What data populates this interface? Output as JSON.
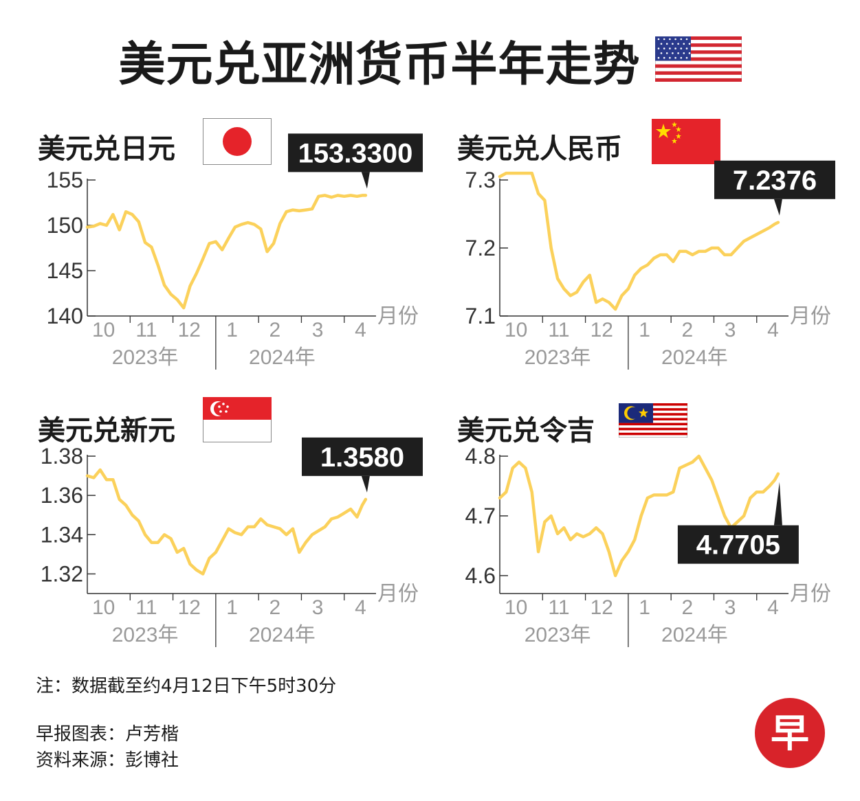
{
  "title": "美元兑亚洲货币半年走势",
  "note": "注：数据截至约4月12日下午5时30分",
  "credits": {
    "chart_by": "早报图表：卢芳楷",
    "source": "资料来源：彭博社"
  },
  "logo_char": "早",
  "month_unit": "月份",
  "year_labels": [
    "2023年",
    "2024年"
  ],
  "colors": {
    "line": "#fbd15b",
    "callout_bg": "#1e1e1e",
    "callout_text": "#ffffff",
    "logo_red": "#d8232a"
  },
  "chart_data": [
    {
      "type": "line",
      "title": "美元兑日元",
      "flag": "japan-flag",
      "latest_label": "153.3300",
      "x_ticks": [
        "10",
        "11",
        "12",
        "1",
        "2",
        "3",
        "4"
      ],
      "ylim": [
        140,
        155
      ],
      "yticks": [
        140,
        145,
        150,
        155
      ],
      "y_tick_labels": [
        "140",
        "145",
        "150",
        "155"
      ],
      "x_range": [
        0,
        6.55
      ],
      "x": [
        0,
        0.15,
        0.3,
        0.45,
        0.6,
        0.75,
        0.9,
        1.05,
        1.2,
        1.35,
        1.5,
        1.65,
        1.8,
        1.95,
        2.1,
        2.25,
        2.4,
        2.55,
        2.7,
        2.85,
        3.0,
        3.15,
        3.3,
        3.45,
        3.6,
        3.75,
        3.9,
        4.05,
        4.2,
        4.35,
        4.5,
        4.65,
        4.8,
        4.95,
        5.1,
        5.25,
        5.4,
        5.55,
        5.7,
        5.85,
        6.0,
        6.15,
        6.3,
        6.42,
        6.5
      ],
      "y": [
        149.8,
        149.9,
        150.2,
        150.0,
        151.2,
        149.5,
        151.5,
        151.2,
        150.4,
        148.1,
        147.6,
        145.6,
        143.4,
        142.4,
        141.8,
        140.9,
        143.3,
        144.7,
        146.3,
        148.0,
        148.2,
        147.3,
        148.6,
        149.8,
        150.1,
        150.3,
        150.1,
        149.6,
        147.1,
        148.0,
        150.2,
        151.5,
        151.7,
        151.6,
        151.7,
        151.8,
        153.2,
        153.3,
        153.1,
        153.3,
        153.2,
        153.3,
        153.2,
        153.3,
        153.3
      ]
    },
    {
      "type": "line",
      "title": "美元兑人民币",
      "flag": "china-flag",
      "latest_label": "7.2376",
      "x_ticks": [
        "10",
        "11",
        "12",
        "1",
        "2",
        "3",
        "4"
      ],
      "ylim": [
        7.1,
        7.3
      ],
      "yticks": [
        7.1,
        7.2,
        7.3
      ],
      "y_tick_labels": [
        "7.1",
        "7.2",
        "7.3"
      ],
      "x_range": [
        0,
        6.55
      ],
      "x": [
        0,
        0.15,
        0.3,
        0.45,
        0.6,
        0.75,
        0.9,
        1.05,
        1.2,
        1.35,
        1.5,
        1.65,
        1.8,
        1.95,
        2.1,
        2.25,
        2.4,
        2.55,
        2.7,
        2.85,
        3.0,
        3.15,
        3.3,
        3.45,
        3.6,
        3.75,
        3.9,
        4.05,
        4.2,
        4.35,
        4.5,
        4.65,
        4.8,
        4.95,
        5.1,
        5.25,
        5.4,
        5.55,
        5.7,
        5.85,
        6.0,
        6.15,
        6.3,
        6.42,
        6.5
      ],
      "y": [
        7.305,
        7.31,
        7.31,
        7.31,
        7.31,
        7.31,
        7.28,
        7.27,
        7.2,
        7.155,
        7.14,
        7.13,
        7.135,
        7.15,
        7.16,
        7.12,
        7.125,
        7.12,
        7.11,
        7.13,
        7.14,
        7.16,
        7.17,
        7.175,
        7.185,
        7.19,
        7.19,
        7.18,
        7.195,
        7.195,
        7.19,
        7.195,
        7.195,
        7.2,
        7.2,
        7.19,
        7.19,
        7.2,
        7.21,
        7.215,
        7.22,
        7.225,
        7.23,
        7.235,
        7.2376
      ]
    },
    {
      "type": "line",
      "title": "美元兑新元",
      "flag": "singapore-flag",
      "latest_label": "1.3580",
      "x_ticks": [
        "10",
        "11",
        "12",
        "1",
        "2",
        "3",
        "4"
      ],
      "ylim": [
        1.31,
        1.38
      ],
      "yticks": [
        1.32,
        1.34,
        1.36,
        1.38
      ],
      "y_tick_labels": [
        "1.32",
        "1.34",
        "1.36",
        "1.38"
      ],
      "x_range": [
        0,
        6.55
      ],
      "x": [
        0,
        0.15,
        0.3,
        0.45,
        0.6,
        0.75,
        0.9,
        1.05,
        1.2,
        1.35,
        1.5,
        1.65,
        1.8,
        1.95,
        2.1,
        2.25,
        2.4,
        2.55,
        2.7,
        2.85,
        3.0,
        3.15,
        3.3,
        3.45,
        3.6,
        3.75,
        3.9,
        4.05,
        4.2,
        4.35,
        4.5,
        4.65,
        4.8,
        4.95,
        5.1,
        5.25,
        5.4,
        5.55,
        5.7,
        5.85,
        6.0,
        6.15,
        6.3,
        6.42,
        6.5
      ],
      "y": [
        1.37,
        1.369,
        1.373,
        1.368,
        1.368,
        1.358,
        1.355,
        1.35,
        1.347,
        1.34,
        1.336,
        1.336,
        1.34,
        1.338,
        1.331,
        1.333,
        1.325,
        1.322,
        1.32,
        1.328,
        1.331,
        1.337,
        1.343,
        1.341,
        1.34,
        1.344,
        1.344,
        1.348,
        1.345,
        1.344,
        1.343,
        1.34,
        1.343,
        1.331,
        1.336,
        1.34,
        1.342,
        1.344,
        1.348,
        1.349,
        1.351,
        1.353,
        1.349,
        1.355,
        1.358
      ]
    },
    {
      "type": "line",
      "title": "美元兑令吉",
      "flag": "malaysia-flag",
      "latest_label": "4.7705",
      "x_ticks": [
        "10",
        "11",
        "12",
        "1",
        "2",
        "3",
        "4"
      ],
      "ylim": [
        4.57,
        4.8
      ],
      "yticks": [
        4.6,
        4.7,
        4.8
      ],
      "y_tick_labels": [
        "4.6",
        "4.7",
        "4.8"
      ],
      "x_range": [
        0,
        6.55
      ],
      "x": [
        0,
        0.15,
        0.3,
        0.45,
        0.6,
        0.75,
        0.9,
        1.05,
        1.2,
        1.35,
        1.5,
        1.65,
        1.8,
        1.95,
        2.1,
        2.25,
        2.4,
        2.55,
        2.7,
        2.85,
        3.0,
        3.15,
        3.3,
        3.45,
        3.6,
        3.75,
        3.9,
        4.05,
        4.2,
        4.35,
        4.5,
        4.65,
        4.8,
        4.95,
        5.1,
        5.25,
        5.4,
        5.55,
        5.7,
        5.85,
        6.0,
        6.15,
        6.3,
        6.42,
        6.5
      ],
      "y": [
        4.73,
        4.74,
        4.78,
        4.79,
        4.78,
        4.74,
        4.64,
        4.69,
        4.7,
        4.67,
        4.68,
        4.66,
        4.67,
        4.665,
        4.67,
        4.68,
        4.67,
        4.64,
        4.6,
        4.625,
        4.64,
        4.66,
        4.7,
        4.73,
        4.735,
        4.735,
        4.735,
        4.74,
        4.78,
        4.785,
        4.79,
        4.8,
        4.78,
        4.76,
        4.73,
        4.7,
        4.68,
        4.69,
        4.7,
        4.73,
        4.74,
        4.74,
        4.75,
        4.76,
        4.7705
      ]
    }
  ]
}
